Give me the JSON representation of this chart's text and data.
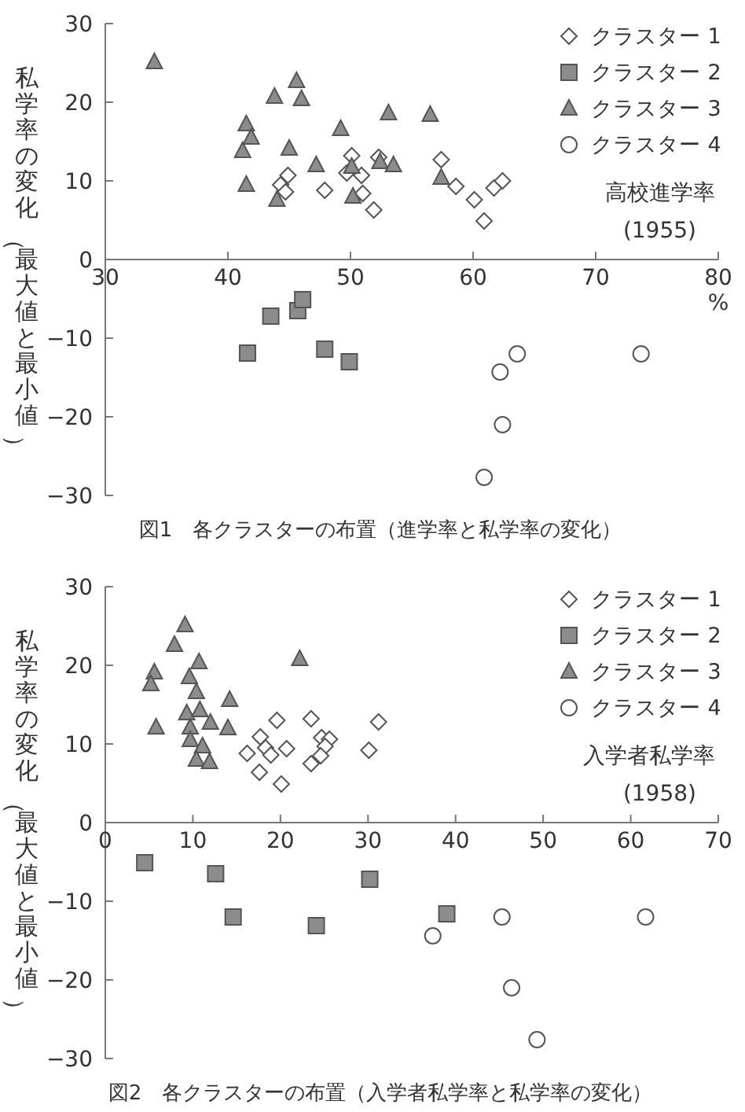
{
  "chart_data": [
    {
      "type": "scatter",
      "title": "図1　各クラスターの布置（進学率と私学率の変化）",
      "xlabel": "高校進学率\n(1955)",
      "ylabel": "私学率の変化（最大値と最小値）",
      "annotations": [
        "%"
      ],
      "xlim": [
        30,
        80
      ],
      "xticks": [
        30,
        40,
        50,
        60,
        70,
        80
      ],
      "ylim": [
        -30,
        30
      ],
      "yticks": [
        -30,
        -20,
        -10,
        0,
        10,
        20,
        30
      ],
      "grid": false,
      "legend": "top right",
      "series": [
        {
          "name": "クラスター 1",
          "color": "#ffffff",
          "marker": "diamond",
          "x": [
            44.9,
            44.3,
            44.7,
            47.9,
            50.1,
            49.7,
            50.9,
            51.0,
            51.9,
            52.3,
            57.4,
            58.6,
            60.1,
            60.9,
            61.7,
            62.4
          ],
          "values": [
            10.7,
            9.5,
            8.6,
            8.8,
            13.2,
            11.0,
            10.7,
            8.4,
            6.3,
            13.0,
            12.7,
            9.3,
            7.6,
            4.9,
            9.1,
            10.0
          ]
        },
        {
          "name": "クラスター 2",
          "color": "#8c8c8c",
          "marker": "square",
          "x": [
            41.6,
            43.5,
            45.7,
            46.1,
            47.9,
            49.9
          ],
          "values": [
            -11.9,
            -7.2,
            -6.5,
            -5.1,
            -11.4,
            -13.0
          ]
        },
        {
          "name": "クラスター 3",
          "color": "#8c8c8c",
          "marker": "triangle",
          "x": [
            34.0,
            41.5,
            41.9,
            41.2,
            41.5,
            43.8,
            45.6,
            46.0,
            45.0,
            44.0,
            47.2,
            49.2,
            50.1,
            50.2,
            53.1,
            52.4,
            53.5,
            56.5,
            57.4
          ],
          "values": [
            25.1,
            17.2,
            15.5,
            13.8,
            9.5,
            20.7,
            22.7,
            20.4,
            14.1,
            7.6,
            12.0,
            16.6,
            11.8,
            8.0,
            18.6,
            12.4,
            12.0,
            18.4,
            10.4
          ]
        },
        {
          "name": "クラスター 4",
          "color": "#ffffff",
          "marker": "circle",
          "x": [
            63.6,
            62.2,
            62.4,
            60.9,
            73.7
          ],
          "values": [
            -12.0,
            -14.3,
            -21.0,
            -27.7,
            -12.0
          ]
        }
      ]
    },
    {
      "type": "scatter",
      "title": "図2　各クラスターの布置（入学者私学率と私学率の変化）",
      "xlabel": "入学者私学率\n(1958)",
      "ylabel": "私学率の変化（最大値と最小値）",
      "xlim": [
        0,
        70
      ],
      "xticks": [
        0,
        10,
        20,
        30,
        40,
        50,
        60,
        70
      ],
      "ylim": [
        -30,
        30
      ],
      "yticks": [
        -30,
        -20,
        -10,
        0,
        10,
        20,
        30
      ],
      "grid": false,
      "legend": "top right",
      "series": [
        {
          "name": "クラスター 1",
          "color": "#ffffff",
          "marker": "diamond",
          "x": [
            16.2,
            17.7,
            18.3,
            18.9,
            17.6,
            19.6,
            20.7,
            20.1,
            23.5,
            24.7,
            25.6,
            25.1,
            24.6,
            23.5,
            30.1,
            31.2
          ],
          "values": [
            8.8,
            10.9,
            9.5,
            8.6,
            6.4,
            13.0,
            9.4,
            4.9,
            13.2,
            10.8,
            10.6,
            9.7,
            8.5,
            7.5,
            9.2,
            12.8
          ]
        },
        {
          "name": "クラスター 2",
          "color": "#8c8c8c",
          "marker": "square",
          "x": [
            4.5,
            12.6,
            14.6,
            24.1,
            30.2,
            39.0
          ],
          "values": [
            -5.1,
            -6.5,
            -12.0,
            -13.1,
            -7.2,
            -11.6
          ]
        },
        {
          "name": "クラスター 3",
          "color": "#8c8c8c",
          "marker": "triangle",
          "x": [
            9.1,
            7.9,
            5.6,
            5.2,
            5.8,
            10.7,
            9.6,
            10.4,
            9.3,
            10.8,
            9.7,
            12.0,
            14.2,
            14.0,
            9.7,
            11.1,
            10.4,
            11.9,
            22.2
          ],
          "values": [
            25.1,
            22.6,
            19.1,
            17.6,
            12.1,
            20.4,
            18.5,
            16.6,
            13.9,
            14.3,
            12.1,
            12.7,
            15.6,
            12.0,
            10.5,
            9.7,
            8.0,
            7.7,
            20.8
          ]
        },
        {
          "name": "クラスター 4",
          "color": "#ffffff",
          "marker": "circle",
          "x": [
            37.4,
            45.3,
            46.4,
            49.3,
            61.7
          ],
          "values": [
            -14.4,
            -12.0,
            -21.0,
            -27.6,
            -12.0
          ]
        }
      ]
    }
  ]
}
